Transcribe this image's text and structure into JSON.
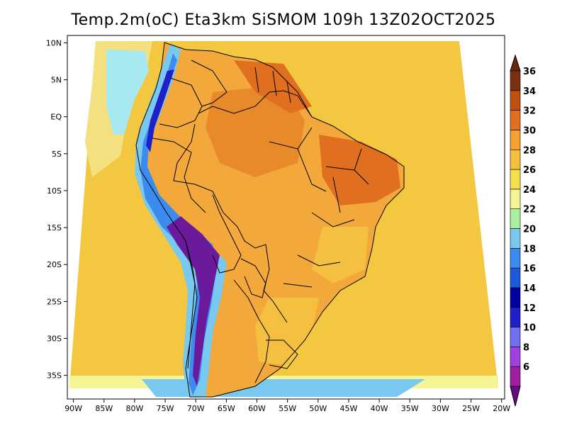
{
  "title": "Temp.2m(oC) Eta3km SiSMOM 109h 13Z02OCT2025",
  "map": {
    "lat_labels": [
      "10N",
      "5N",
      "EQ",
      "5S",
      "10S",
      "15S",
      "20S",
      "25S",
      "30S",
      "35S"
    ],
    "lat_values": [
      10,
      5,
      0,
      -5,
      -10,
      -15,
      -20,
      -25,
      -30,
      -35
    ],
    "lon_labels": [
      "90W",
      "85W",
      "80W",
      "75W",
      "70W",
      "65W",
      "60W",
      "55W",
      "50W",
      "45W",
      "40W",
      "35W",
      "30W",
      "25W",
      "20W"
    ],
    "lon_values": [
      -90,
      -85,
      -80,
      -75,
      -70,
      -65,
      -60,
      -55,
      -50,
      -45,
      -40,
      -35,
      -30,
      -25,
      -20
    ],
    "lat_range": [
      -38.2,
      11
    ],
    "lon_range": [
      -91,
      -19.5
    ]
  },
  "colorbar": {
    "labels": [
      "36",
      "34",
      "32",
      "30",
      "28",
      "26",
      "24",
      "22",
      "20",
      "18",
      "16",
      "14",
      "12",
      "10",
      "8",
      "6"
    ],
    "levels": [
      6,
      8,
      10,
      12,
      14,
      16,
      18,
      20,
      22,
      24,
      26,
      28,
      30,
      32,
      34,
      36
    ],
    "colors": [
      "#a01fa0",
      "#a040e0",
      "#7070f0",
      "#2020c8",
      "#0000a0",
      "#1c5ad8",
      "#3c8cf0",
      "#78c8f0",
      "#a8f0a0",
      "#f5f595",
      "#f5e050",
      "#f5c040",
      "#f5a030",
      "#e07020",
      "#c05010",
      "#7a3010"
    ],
    "below_color": "#6a0a8a",
    "above_color": "#6a2808"
  },
  "colors": {
    "ocean": "#f3c840",
    "land": "#f2a83a",
    "border": "#000000"
  }
}
